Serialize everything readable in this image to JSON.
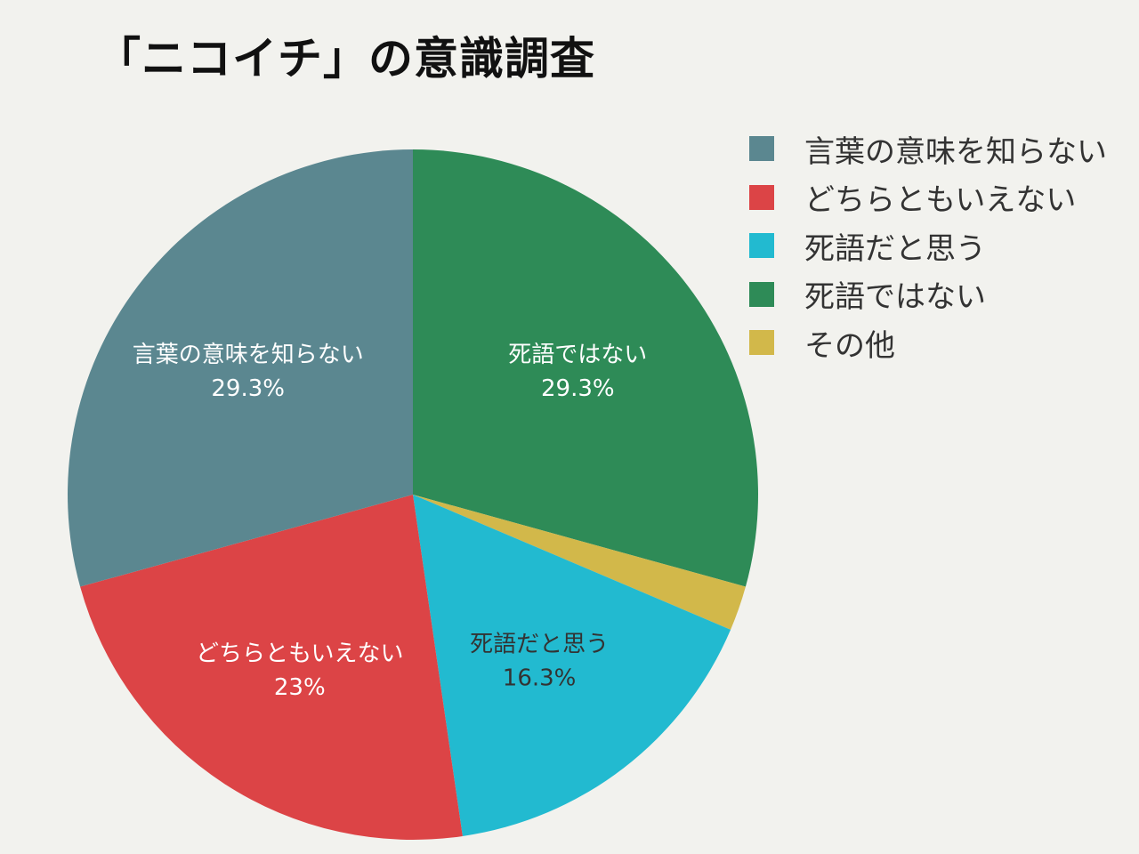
{
  "chart_data": {
    "type": "pie",
    "title": "「ニコイチ」の意識調査",
    "legend_position": "right",
    "slices": [
      {
        "label": "言葉の意味を知らない",
        "value": 29.3,
        "value_label": "29.3%",
        "color": "#5b8790",
        "text_color": "#ffffff"
      },
      {
        "label": "どちらともいえない",
        "value": 23,
        "value_label": "23%",
        "color": "#dc4446",
        "text_color": "#ffffff"
      },
      {
        "label": "死語だと思う",
        "value": 16.3,
        "value_label": "16.3%",
        "color": "#22bad0",
        "text_color": "#333333"
      },
      {
        "label": "死語ではない",
        "value": 29.3,
        "value_label": "29.3%",
        "color": "#2e8b57",
        "text_color": "#ffffff"
      },
      {
        "label": "その他",
        "value": 2.1,
        "value_label": "",
        "color": "#d2b84a",
        "text_color": "#333333"
      }
    ],
    "draw_order": [
      3,
      4,
      2,
      1,
      0
    ]
  }
}
